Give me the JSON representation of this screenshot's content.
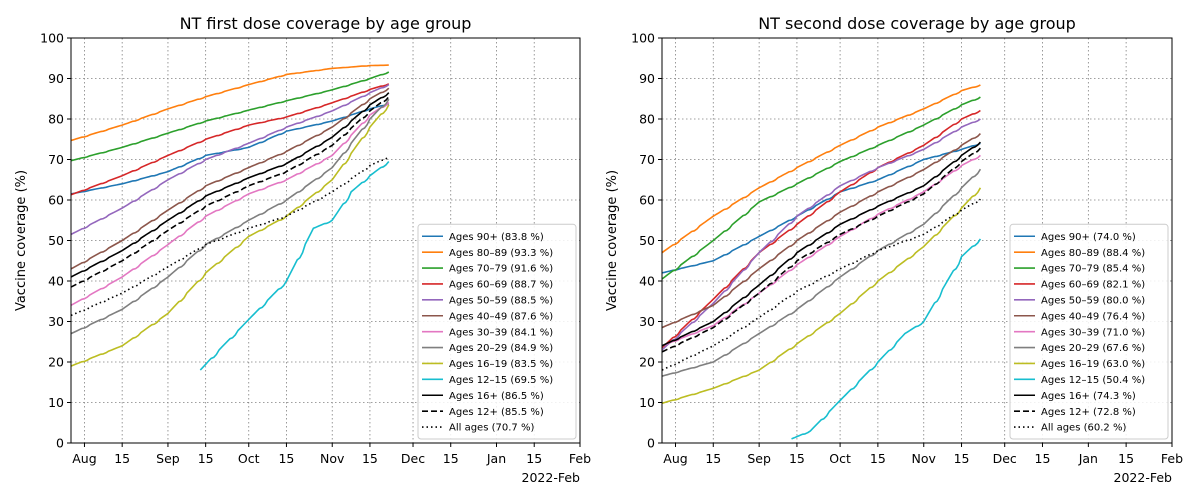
{
  "chart_data": [
    {
      "type": "line",
      "title": "NT first dose coverage by age group",
      "ylabel": "Vaccine coverage (%)",
      "xlabel": "",
      "ylim": [
        0,
        100
      ],
      "yticks": [
        0,
        10,
        20,
        30,
        40,
        50,
        60,
        70,
        80,
        90,
        100
      ],
      "xlim": [
        "2021-07-27",
        "2022-02-01"
      ],
      "xticks": [
        {
          "date": "2021-08-01",
          "label": "Aug"
        },
        {
          "date": "2021-08-15",
          "label": "15"
        },
        {
          "date": "2021-09-01",
          "label": "Sep"
        },
        {
          "date": "2021-09-15",
          "label": "15"
        },
        {
          "date": "2021-10-01",
          "label": "Oct"
        },
        {
          "date": "2021-10-15",
          "label": "15"
        },
        {
          "date": "2021-11-01",
          "label": "Nov"
        },
        {
          "date": "2021-11-15",
          "label": "15"
        },
        {
          "date": "2021-12-01",
          "label": "Dec"
        },
        {
          "date": "2021-12-15",
          "label": "15"
        },
        {
          "date": "2022-01-01",
          "label": "Jan"
        },
        {
          "date": "2022-01-15",
          "label": "15"
        },
        {
          "date": "2022-02-01",
          "label": "Feb"
        }
      ],
      "axis_offset_label": "2022-Feb",
      "grid": true,
      "legend_position": "lower-right",
      "series": [
        {
          "name": "Ages 90+ (83.8 %)",
          "color": "#1f77b4",
          "style": "solid",
          "x": [
            "2021-07-27",
            "2021-08-15",
            "2021-09-01",
            "2021-09-15",
            "2021-10-01",
            "2021-10-15",
            "2021-11-01",
            "2021-11-15",
            "2021-11-22"
          ],
          "y": [
            61.5,
            64,
            67,
            71,
            73,
            77,
            79.5,
            82.5,
            83.8
          ]
        },
        {
          "name": "Ages 80–89 (93.3 %)",
          "color": "#ff7f0e",
          "style": "solid",
          "x": [
            "2021-07-27",
            "2021-08-15",
            "2021-09-01",
            "2021-09-15",
            "2021-10-01",
            "2021-10-15",
            "2021-11-01",
            "2021-11-15",
            "2021-11-22"
          ],
          "y": [
            74.7,
            78.5,
            82.5,
            85.5,
            88.5,
            91,
            92.5,
            93.2,
            93.3
          ]
        },
        {
          "name": "Ages 70–79 (91.6 %)",
          "color": "#2ca02c",
          "style": "solid",
          "x": [
            "2021-07-27",
            "2021-08-15",
            "2021-09-01",
            "2021-09-15",
            "2021-10-01",
            "2021-10-15",
            "2021-11-01",
            "2021-11-15",
            "2021-11-22"
          ],
          "y": [
            69.7,
            73,
            76.5,
            79.5,
            82.2,
            84.5,
            87.2,
            90,
            91.6
          ]
        },
        {
          "name": "Ages 60–69 (88.7 %)",
          "color": "#d62728",
          "style": "solid",
          "x": [
            "2021-07-27",
            "2021-08-15",
            "2021-09-01",
            "2021-09-15",
            "2021-10-01",
            "2021-10-15",
            "2021-11-01",
            "2021-11-15",
            "2021-11-22"
          ],
          "y": [
            61.3,
            66,
            71,
            75,
            78.5,
            80.5,
            84,
            87.3,
            88.7
          ]
        },
        {
          "name": "Ages 50–59 (88.5 %)",
          "color": "#9467bd",
          "style": "solid",
          "x": [
            "2021-07-27",
            "2021-08-15",
            "2021-09-01",
            "2021-09-15",
            "2021-10-01",
            "2021-10-15",
            "2021-11-01",
            "2021-11-15",
            "2021-11-22"
          ],
          "y": [
            51.5,
            58,
            65,
            70,
            74,
            78,
            82,
            86.5,
            88.5
          ]
        },
        {
          "name": "Ages 40–49 (87.6 %)",
          "color": "#8c564b",
          "style": "solid",
          "x": [
            "2021-07-27",
            "2021-08-15",
            "2021-09-01",
            "2021-09-15",
            "2021-10-01",
            "2021-10-15",
            "2021-11-01",
            "2021-11-15",
            "2021-11-22"
          ],
          "y": [
            43,
            50,
            57.5,
            63.5,
            68,
            72,
            78,
            85,
            87.6
          ]
        },
        {
          "name": "Ages 30–39 (84.1 %)",
          "color": "#e377c2",
          "style": "solid",
          "x": [
            "2021-07-27",
            "2021-08-15",
            "2021-09-01",
            "2021-09-15",
            "2021-10-01",
            "2021-10-15",
            "2021-11-01",
            "2021-11-15",
            "2021-11-22"
          ],
          "y": [
            34,
            41,
            49,
            56,
            61.5,
            65,
            71,
            81,
            84.1
          ]
        },
        {
          "name": "Ages 20–29 (84.9 %)",
          "color": "#7f7f7f",
          "style": "solid",
          "x": [
            "2021-07-27",
            "2021-08-15",
            "2021-09-01",
            "2021-09-15",
            "2021-10-01",
            "2021-10-15",
            "2021-11-01",
            "2021-11-15",
            "2021-11-22"
          ],
          "y": [
            27,
            33,
            41,
            49,
            55,
            60,
            68,
            80,
            84.9
          ]
        },
        {
          "name": "Ages 16–19 (83.5 %)",
          "color": "#bcbd22",
          "style": "solid",
          "x": [
            "2021-07-27",
            "2021-08-15",
            "2021-09-01",
            "2021-09-15",
            "2021-10-01",
            "2021-10-15",
            "2021-11-01",
            "2021-11-15",
            "2021-11-22"
          ],
          "y": [
            19,
            24,
            32,
            42,
            51,
            56,
            65,
            78,
            83.5
          ]
        },
        {
          "name": "Ages 12–15 (69.5 %)",
          "color": "#17becf",
          "style": "solid",
          "x": [
            "2021-09-13",
            "2021-09-20",
            "2021-10-01",
            "2021-10-15",
            "2021-10-25",
            "2021-11-01",
            "2021-11-08",
            "2021-11-15",
            "2021-11-22"
          ],
          "y": [
            18,
            23,
            30.5,
            40,
            53,
            55,
            62,
            66,
            69.5
          ]
        },
        {
          "name": "Ages 16+ (86.5 %)",
          "color": "#000000",
          "style": "solid",
          "x": [
            "2021-07-27",
            "2021-08-15",
            "2021-09-01",
            "2021-09-15",
            "2021-10-01",
            "2021-10-15",
            "2021-11-01",
            "2021-11-15",
            "2021-11-22"
          ],
          "y": [
            41,
            47.5,
            55,
            61,
            65.5,
            69,
            75.5,
            83.5,
            86.5
          ]
        },
        {
          "name": "Ages 12+ (85.5 %)",
          "color": "#000000",
          "style": "dashed",
          "x": [
            "2021-07-27",
            "2021-08-15",
            "2021-09-01",
            "2021-09-15",
            "2021-10-01",
            "2021-10-15",
            "2021-11-01",
            "2021-11-15",
            "2021-11-22"
          ],
          "y": [
            38.5,
            45,
            52.5,
            58.5,
            63.5,
            67,
            73.5,
            82,
            85.5
          ]
        },
        {
          "name": "All ages (70.7 %)",
          "color": "#000000",
          "style": "dotted",
          "x": [
            "2021-07-27",
            "2021-08-15",
            "2021-09-01",
            "2021-09-15",
            "2021-10-01",
            "2021-10-15",
            "2021-11-01",
            "2021-11-15",
            "2021-11-22"
          ],
          "y": [
            31.5,
            37,
            43.5,
            49,
            53,
            56,
            62,
            68.5,
            70.7
          ]
        }
      ]
    },
    {
      "type": "line",
      "title": "NT second dose coverage by age group",
      "ylabel": "Vaccine coverage (%)",
      "xlabel": "",
      "ylim": [
        0,
        100
      ],
      "yticks": [
        0,
        10,
        20,
        30,
        40,
        50,
        60,
        70,
        80,
        90,
        100
      ],
      "xlim": [
        "2021-07-27",
        "2022-02-01"
      ],
      "xticks": [
        {
          "date": "2021-08-01",
          "label": "Aug"
        },
        {
          "date": "2021-08-15",
          "label": "15"
        },
        {
          "date": "2021-09-01",
          "label": "Sep"
        },
        {
          "date": "2021-09-15",
          "label": "15"
        },
        {
          "date": "2021-10-01",
          "label": "Oct"
        },
        {
          "date": "2021-10-15",
          "label": "15"
        },
        {
          "date": "2021-11-01",
          "label": "Nov"
        },
        {
          "date": "2021-11-15",
          "label": "15"
        },
        {
          "date": "2021-12-01",
          "label": "Dec"
        },
        {
          "date": "2021-12-15",
          "label": "15"
        },
        {
          "date": "2022-01-01",
          "label": "Jan"
        },
        {
          "date": "2022-01-15",
          "label": "15"
        },
        {
          "date": "2022-02-01",
          "label": "Feb"
        }
      ],
      "axis_offset_label": "2022-Feb",
      "grid": true,
      "legend_position": "lower-right",
      "series": [
        {
          "name": "Ages 90+ (74.0 %)",
          "color": "#1f77b4",
          "style": "solid",
          "x": [
            "2021-07-27",
            "2021-08-15",
            "2021-09-01",
            "2021-09-15",
            "2021-10-01",
            "2021-10-15",
            "2021-11-01",
            "2021-11-15",
            "2021-11-22"
          ],
          "y": [
            42,
            45,
            51,
            56,
            62,
            65,
            70,
            72.5,
            74
          ]
        },
        {
          "name": "Ages 80–89 (88.4 %)",
          "color": "#ff7f0e",
          "style": "solid",
          "x": [
            "2021-07-27",
            "2021-08-15",
            "2021-09-01",
            "2021-09-15",
            "2021-10-01",
            "2021-10-15",
            "2021-11-01",
            "2021-11-15",
            "2021-11-22"
          ],
          "y": [
            47,
            56,
            63,
            68,
            73.5,
            78,
            82.5,
            87,
            88.4
          ]
        },
        {
          "name": "Ages 70–79 (85.4 %)",
          "color": "#2ca02c",
          "style": "solid",
          "x": [
            "2021-07-27",
            "2021-08-15",
            "2021-09-01",
            "2021-09-15",
            "2021-10-01",
            "2021-10-15",
            "2021-11-01",
            "2021-11-15",
            "2021-11-22"
          ],
          "y": [
            40.5,
            50,
            59.5,
            64,
            69.5,
            73.5,
            78.5,
            83.5,
            85.4
          ]
        },
        {
          "name": "Ages 60–69 (82.1 %)",
          "color": "#d62728",
          "style": "solid",
          "x": [
            "2021-07-27",
            "2021-08-15",
            "2021-09-01",
            "2021-09-15",
            "2021-10-01",
            "2021-10-15",
            "2021-11-01",
            "2021-11-15",
            "2021-11-22"
          ],
          "y": [
            23.5,
            35.5,
            47,
            54,
            62,
            68,
            73.5,
            80,
            82.1
          ]
        },
        {
          "name": "Ages 50–59 (80.0 %)",
          "color": "#9467bd",
          "style": "solid",
          "x": [
            "2021-07-27",
            "2021-08-15",
            "2021-09-01",
            "2021-09-15",
            "2021-10-01",
            "2021-10-15",
            "2021-11-01",
            "2021-11-15",
            "2021-11-22"
          ],
          "y": [
            23,
            34.5,
            47,
            56,
            63.5,
            68,
            72.5,
            78,
            80
          ]
        },
        {
          "name": "Ages 40–49 (76.4 %)",
          "color": "#8c564b",
          "style": "solid",
          "x": [
            "2021-07-27",
            "2021-08-15",
            "2021-09-01",
            "2021-09-15",
            "2021-10-01",
            "2021-10-15",
            "2021-11-01",
            "2021-11-15",
            "2021-11-22"
          ],
          "y": [
            28.5,
            34,
            43,
            50,
            57,
            62,
            67.5,
            73.5,
            76.4
          ]
        },
        {
          "name": "Ages 30–39 (71.0 %)",
          "color": "#e377c2",
          "style": "solid",
          "x": [
            "2021-07-27",
            "2021-08-15",
            "2021-09-01",
            "2021-09-15",
            "2021-10-01",
            "2021-10-15",
            "2021-11-01",
            "2021-11-15",
            "2021-11-22"
          ],
          "y": [
            24,
            29,
            37,
            44,
            51,
            56.5,
            62,
            68.5,
            71
          ]
        },
        {
          "name": "Ages 20–29 (67.6 %)",
          "color": "#7f7f7f",
          "style": "solid",
          "x": [
            "2021-07-27",
            "2021-08-15",
            "2021-09-01",
            "2021-09-15",
            "2021-10-01",
            "2021-10-15",
            "2021-11-01",
            "2021-11-15",
            "2021-11-22"
          ],
          "y": [
            16.5,
            20,
            27,
            33,
            41,
            47.5,
            54,
            63,
            67.6
          ]
        },
        {
          "name": "Ages 16–19 (63.0 %)",
          "color": "#bcbd22",
          "style": "solid",
          "x": [
            "2021-07-27",
            "2021-08-15",
            "2021-09-01",
            "2021-09-15",
            "2021-10-01",
            "2021-10-15",
            "2021-11-01",
            "2021-11-15",
            "2021-11-22"
          ],
          "y": [
            9.8,
            13.5,
            18,
            24.5,
            32,
            40,
            48.5,
            58,
            63
          ]
        },
        {
          "name": "Ages 12–15 (50.4 %)",
          "color": "#17becf",
          "style": "solid",
          "x": [
            "2021-09-13",
            "2021-09-20",
            "2021-10-01",
            "2021-10-15",
            "2021-10-25",
            "2021-11-01",
            "2021-11-08",
            "2021-11-15",
            "2021-11-22"
          ],
          "y": [
            1,
            3,
            10.5,
            20,
            27,
            30,
            38,
            46,
            50.4
          ]
        },
        {
          "name": "Ages 16+ (74.3 %)",
          "color": "#000000",
          "style": "solid",
          "x": [
            "2021-07-27",
            "2021-08-15",
            "2021-09-01",
            "2021-09-15",
            "2021-10-01",
            "2021-10-15",
            "2021-11-01",
            "2021-11-15",
            "2021-11-22"
          ],
          "y": [
            24,
            30,
            39,
            47,
            54,
            58.5,
            63.5,
            71,
            74.3
          ]
        },
        {
          "name": "Ages 12+ (72.8 %)",
          "color": "#000000",
          "style": "dashed",
          "x": [
            "2021-07-27",
            "2021-08-15",
            "2021-09-01",
            "2021-09-15",
            "2021-10-01",
            "2021-10-15",
            "2021-11-01",
            "2021-11-15",
            "2021-11-22"
          ],
          "y": [
            22.5,
            28.5,
            37,
            45,
            51.5,
            56,
            61.5,
            69.5,
            72.8
          ]
        },
        {
          "name": "All ages (60.2 %)",
          "color": "#000000",
          "style": "dotted",
          "x": [
            "2021-07-27",
            "2021-08-15",
            "2021-09-01",
            "2021-09-15",
            "2021-10-01",
            "2021-10-15",
            "2021-11-01",
            "2021-11-15",
            "2021-11-22"
          ],
          "y": [
            18,
            24,
            31,
            37.5,
            43,
            47.5,
            51.5,
            57.5,
            60.2
          ]
        }
      ]
    }
  ]
}
